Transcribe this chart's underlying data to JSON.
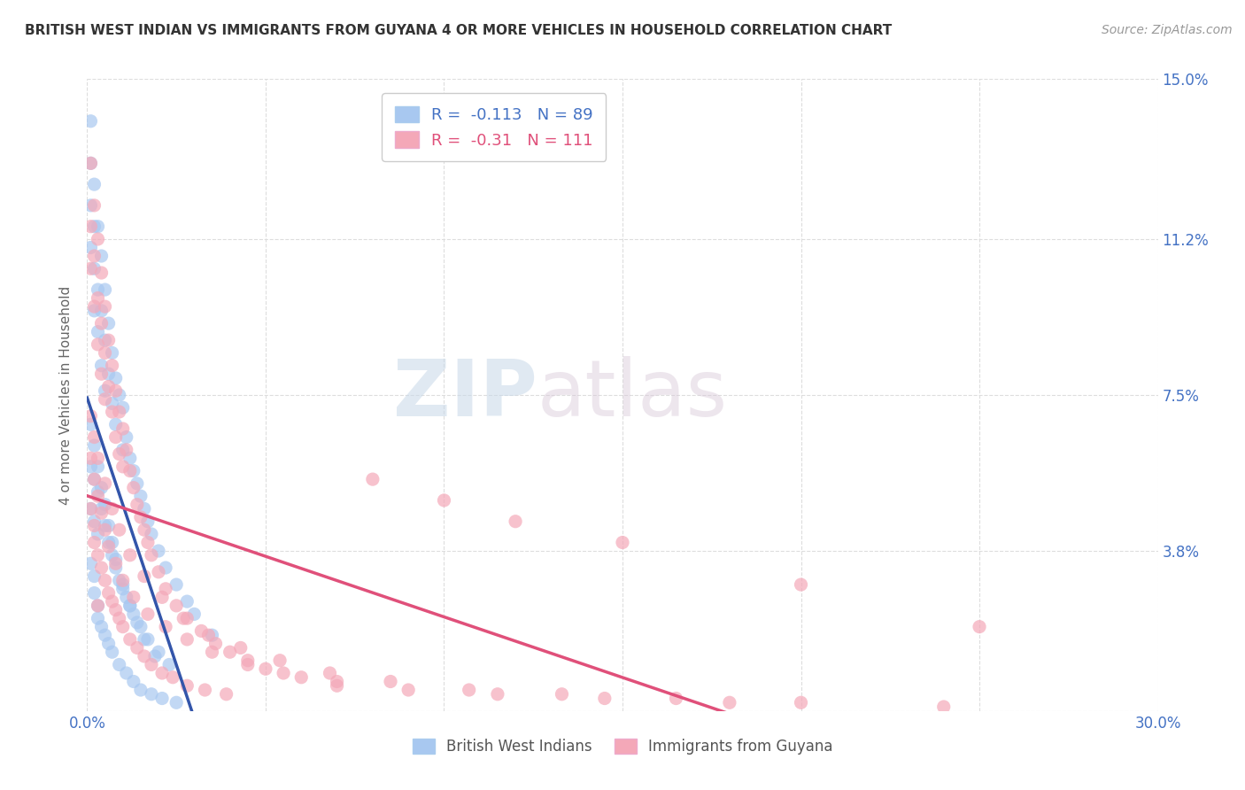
{
  "title": "BRITISH WEST INDIAN VS IMMIGRANTS FROM GUYANA 4 OR MORE VEHICLES IN HOUSEHOLD CORRELATION CHART",
  "source": "Source: ZipAtlas.com",
  "ylabel": "4 or more Vehicles in Household",
  "watermark_zip": "ZIP",
  "watermark_atlas": "atlas",
  "xmin": 0.0,
  "xmax": 0.3,
  "ymin": 0.0,
  "ymax": 0.15,
  "yticks": [
    0.0,
    0.038,
    0.075,
    0.112,
    0.15
  ],
  "ytick_labels": [
    "",
    "3.8%",
    "7.5%",
    "11.2%",
    "15.0%"
  ],
  "xticks": [
    0.0,
    0.05,
    0.1,
    0.15,
    0.2,
    0.25,
    0.3
  ],
  "xtick_labels": [
    "0.0%",
    "",
    "",
    "",
    "",
    "",
    "30.0%"
  ],
  "blue_R": -0.113,
  "blue_N": 89,
  "pink_R": -0.31,
  "pink_N": 111,
  "blue_color": "#A8C8F0",
  "pink_color": "#F4A8B8",
  "blue_line_color": "#3355AA",
  "pink_line_color": "#E0507A",
  "legend_label_blue": "British West Indians",
  "legend_label_pink": "Immigrants from Guyana",
  "title_color": "#333333",
  "axis_label_color": "#666666",
  "tick_label_color": "#4472C4",
  "grid_color": "#DDDDDD",
  "background_color": "#FFFFFF",
  "blue_scatter_x": [
    0.001,
    0.001,
    0.001,
    0.001,
    0.002,
    0.002,
    0.002,
    0.002,
    0.003,
    0.003,
    0.003,
    0.004,
    0.004,
    0.004,
    0.005,
    0.005,
    0.005,
    0.006,
    0.006,
    0.007,
    0.007,
    0.008,
    0.008,
    0.009,
    0.01,
    0.01,
    0.011,
    0.012,
    0.013,
    0.014,
    0.015,
    0.016,
    0.017,
    0.018,
    0.02,
    0.022,
    0.025,
    0.028,
    0.03,
    0.035,
    0.001,
    0.001,
    0.002,
    0.002,
    0.003,
    0.003,
    0.004,
    0.005,
    0.006,
    0.007,
    0.008,
    0.009,
    0.01,
    0.011,
    0.012,
    0.013,
    0.015,
    0.017,
    0.02,
    0.023,
    0.001,
    0.002,
    0.002,
    0.003,
    0.003,
    0.004,
    0.005,
    0.006,
    0.007,
    0.009,
    0.011,
    0.013,
    0.015,
    0.018,
    0.021,
    0.025,
    0.001,
    0.002,
    0.003,
    0.004,
    0.005,
    0.006,
    0.007,
    0.008,
    0.01,
    0.012,
    0.014,
    0.016,
    0.019
  ],
  "blue_scatter_y": [
    0.14,
    0.13,
    0.12,
    0.11,
    0.125,
    0.115,
    0.105,
    0.095,
    0.115,
    0.1,
    0.09,
    0.108,
    0.095,
    0.082,
    0.1,
    0.088,
    0.076,
    0.092,
    0.08,
    0.085,
    0.073,
    0.079,
    0.068,
    0.075,
    0.072,
    0.062,
    0.065,
    0.06,
    0.057,
    0.054,
    0.051,
    0.048,
    0.045,
    0.042,
    0.038,
    0.034,
    0.03,
    0.026,
    0.023,
    0.018,
    0.058,
    0.048,
    0.055,
    0.045,
    0.052,
    0.042,
    0.048,
    0.044,
    0.04,
    0.037,
    0.034,
    0.031,
    0.029,
    0.027,
    0.025,
    0.023,
    0.02,
    0.017,
    0.014,
    0.011,
    0.035,
    0.032,
    0.028,
    0.025,
    0.022,
    0.02,
    0.018,
    0.016,
    0.014,
    0.011,
    0.009,
    0.007,
    0.005,
    0.004,
    0.003,
    0.002,
    0.068,
    0.063,
    0.058,
    0.053,
    0.049,
    0.044,
    0.04,
    0.036,
    0.03,
    0.025,
    0.021,
    0.017,
    0.013
  ],
  "pink_scatter_x": [
    0.001,
    0.001,
    0.001,
    0.002,
    0.002,
    0.002,
    0.003,
    0.003,
    0.003,
    0.004,
    0.004,
    0.004,
    0.005,
    0.005,
    0.005,
    0.006,
    0.006,
    0.007,
    0.007,
    0.008,
    0.008,
    0.009,
    0.009,
    0.01,
    0.01,
    0.011,
    0.012,
    0.013,
    0.014,
    0.015,
    0.016,
    0.017,
    0.018,
    0.02,
    0.022,
    0.025,
    0.028,
    0.032,
    0.036,
    0.04,
    0.045,
    0.05,
    0.06,
    0.07,
    0.08,
    0.1,
    0.12,
    0.15,
    0.2,
    0.25,
    0.001,
    0.002,
    0.002,
    0.003,
    0.004,
    0.005,
    0.006,
    0.007,
    0.008,
    0.009,
    0.01,
    0.012,
    0.014,
    0.016,
    0.018,
    0.021,
    0.024,
    0.028,
    0.033,
    0.039,
    0.001,
    0.002,
    0.003,
    0.004,
    0.005,
    0.006,
    0.008,
    0.01,
    0.013,
    0.017,
    0.022,
    0.028,
    0.035,
    0.045,
    0.055,
    0.07,
    0.09,
    0.115,
    0.145,
    0.18,
    0.001,
    0.002,
    0.003,
    0.005,
    0.007,
    0.009,
    0.012,
    0.016,
    0.021,
    0.027,
    0.034,
    0.043,
    0.054,
    0.068,
    0.085,
    0.107,
    0.133,
    0.165,
    0.2,
    0.24,
    0.003
  ],
  "pink_scatter_y": [
    0.13,
    0.115,
    0.105,
    0.12,
    0.108,
    0.096,
    0.112,
    0.098,
    0.087,
    0.104,
    0.092,
    0.08,
    0.096,
    0.085,
    0.074,
    0.088,
    0.077,
    0.082,
    0.071,
    0.076,
    0.065,
    0.071,
    0.061,
    0.067,
    0.058,
    0.062,
    0.057,
    0.053,
    0.049,
    0.046,
    0.043,
    0.04,
    0.037,
    0.033,
    0.029,
    0.025,
    0.022,
    0.019,
    0.016,
    0.014,
    0.012,
    0.01,
    0.008,
    0.006,
    0.055,
    0.05,
    0.045,
    0.04,
    0.03,
    0.02,
    0.048,
    0.044,
    0.04,
    0.037,
    0.034,
    0.031,
    0.028,
    0.026,
    0.024,
    0.022,
    0.02,
    0.017,
    0.015,
    0.013,
    0.011,
    0.009,
    0.008,
    0.006,
    0.005,
    0.004,
    0.06,
    0.055,
    0.051,
    0.047,
    0.043,
    0.039,
    0.035,
    0.031,
    0.027,
    0.023,
    0.02,
    0.017,
    0.014,
    0.011,
    0.009,
    0.007,
    0.005,
    0.004,
    0.003,
    0.002,
    0.07,
    0.065,
    0.06,
    0.054,
    0.048,
    0.043,
    0.037,
    0.032,
    0.027,
    0.022,
    0.018,
    0.015,
    0.012,
    0.009,
    0.007,
    0.005,
    0.004,
    0.003,
    0.002,
    0.001,
    0.025
  ]
}
